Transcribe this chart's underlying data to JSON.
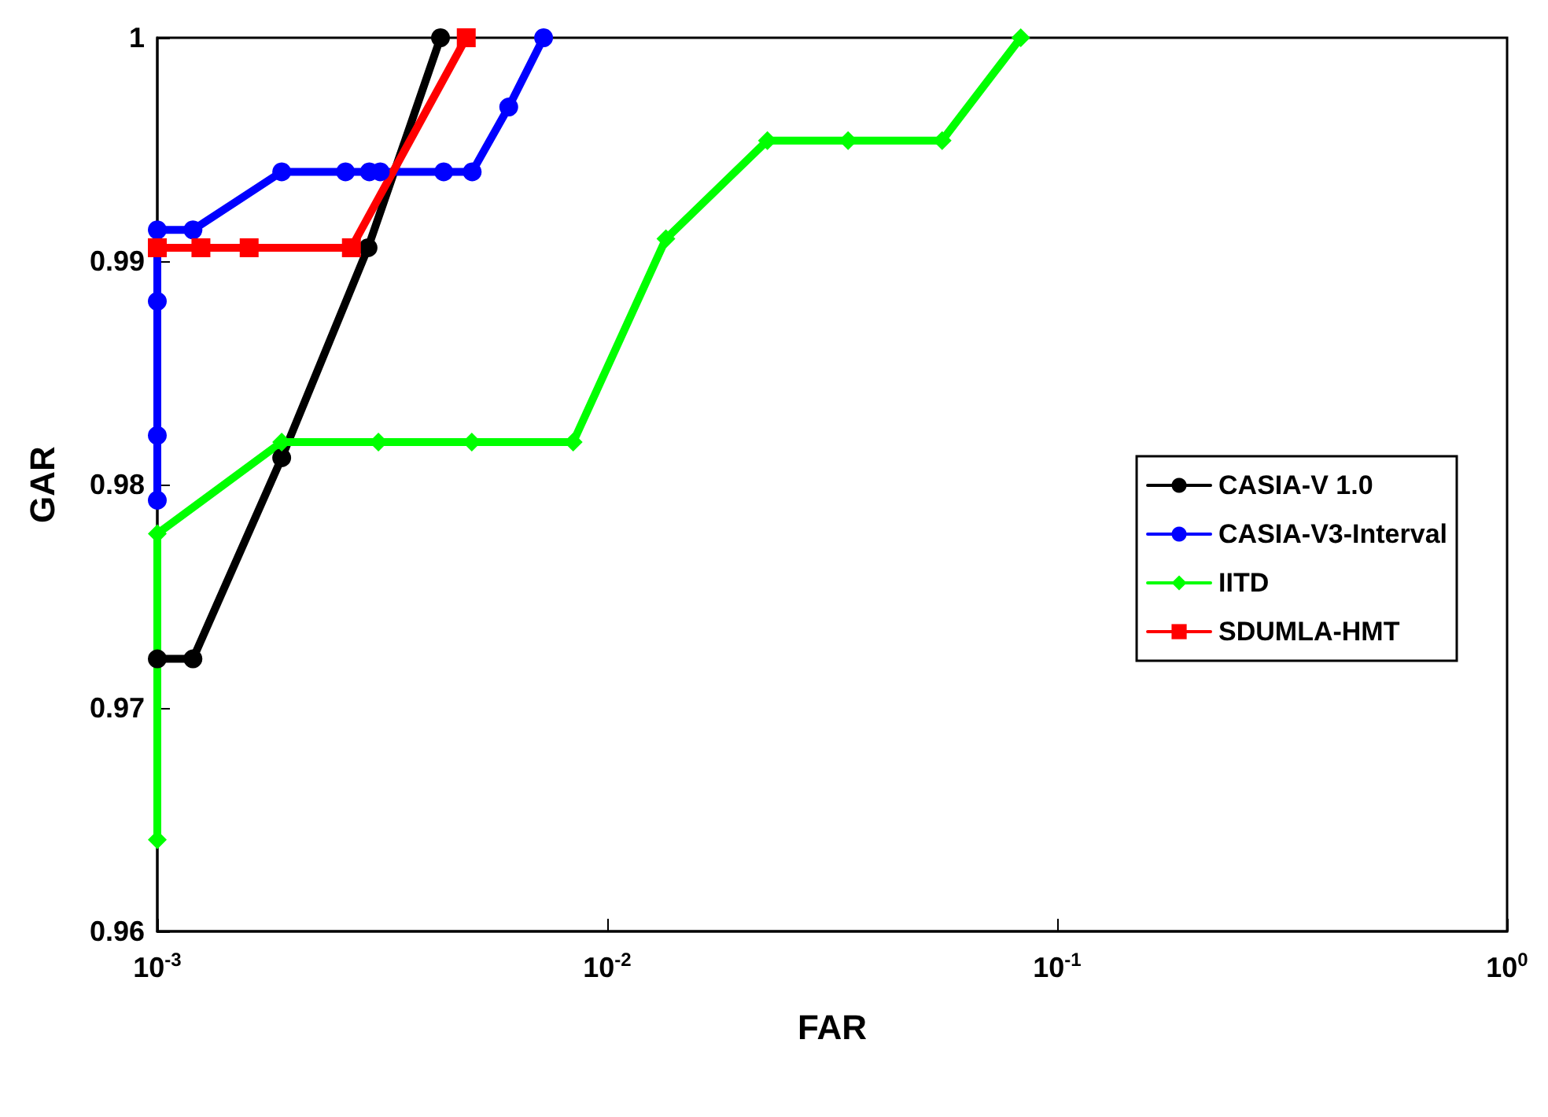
{
  "chart_data": {
    "type": "line",
    "xlabel": "FAR",
    "ylabel": "GAR",
    "log": "x",
    "xlim": [
      0.001,
      1
    ],
    "xticks": [
      {
        "value": 0.001,
        "label": "10$^{-3}$"
      },
      {
        "value": 0.01,
        "label": "10$^{-2}$"
      },
      {
        "value": 0.1,
        "label": "10$^{-1}$"
      },
      {
        "value": 1,
        "label": "10$^{0}$"
      }
    ],
    "ylim": [
      0.96,
      1
    ],
    "yticks": [
      0.96,
      0.97,
      0.98,
      0.99,
      1
    ],
    "grid": false,
    "legend": "right",
    "line_style": "solid",
    "series": [
      {
        "name": "CASIA-V 1.0",
        "color": "#000000",
        "marker": "circle",
        "x": [
          0.001,
          0.0012,
          0.00189,
          0.00294,
          0.00426
        ],
        "values": [
          0.9722,
          0.9722,
          0.9812,
          0.9906,
          1
        ]
      },
      {
        "name": "CASIA-V3-Interval",
        "color": "#0000ff",
        "marker": "circle",
        "x": [
          0.001,
          0.001,
          0.001,
          0.001,
          0.0012,
          0.00189,
          0.00262,
          0.00296,
          0.00313,
          0.00433,
          0.00501,
          0.00604,
          0.00722
        ],
        "values": [
          0.9793,
          0.9822,
          0.9882,
          0.9914,
          0.9914,
          0.994,
          0.994,
          0.994,
          0.994,
          0.994,
          0.994,
          0.9969,
          1
        ]
      },
      {
        "name": "IITD",
        "color": "#00ff00",
        "marker": "diamond",
        "x": [
          0.001,
          0.001,
          0.00189,
          0.0031,
          0.005,
          0.0084,
          0.0135,
          0.0227,
          0.0343,
          0.0555,
          0.083
        ],
        "values": [
          0.9641,
          0.9778,
          0.9819,
          0.9819,
          0.9819,
          0.9819,
          0.991,
          0.9954,
          0.9954,
          0.9954,
          1
        ]
      },
      {
        "name": "SDUMLA-HMT",
        "color": "#ff0000",
        "marker": "square",
        "x": [
          0.001,
          0.00125,
          0.0016,
          0.0027,
          0.00486
        ],
        "values": [
          0.9906,
          0.9906,
          0.9906,
          0.9906,
          1
        ]
      }
    ]
  }
}
